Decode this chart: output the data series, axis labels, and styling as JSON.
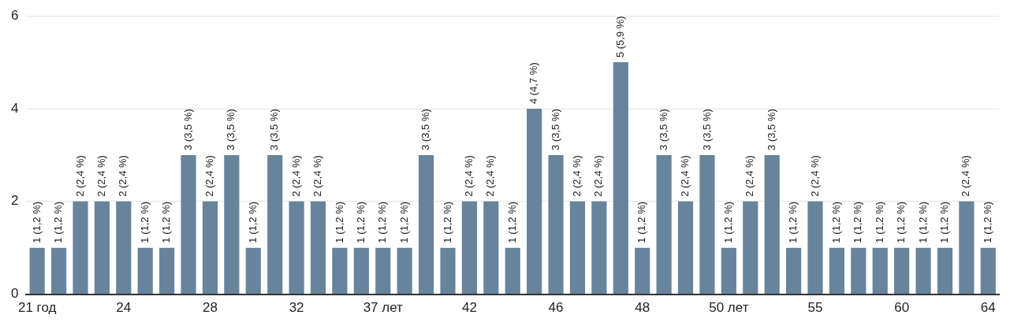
{
  "chart_data": {
    "type": "bar",
    "categories": [
      "21 год",
      null,
      null,
      null,
      "24",
      null,
      null,
      null,
      "28",
      null,
      null,
      null,
      "32",
      null,
      null,
      null,
      "37 лет",
      null,
      null,
      null,
      "42",
      null,
      null,
      null,
      "46",
      null,
      null,
      null,
      "48",
      null,
      null,
      null,
      "50 лет",
      null,
      null,
      null,
      "55",
      null,
      null,
      null,
      "60",
      null,
      null,
      null,
      "64"
    ],
    "values": [
      1,
      1,
      2,
      2,
      2,
      1,
      1,
      3,
      2,
      3,
      1,
      3,
      2,
      2,
      1,
      1,
      1,
      1,
      3,
      1,
      2,
      2,
      1,
      4,
      3,
      2,
      2,
      5,
      1,
      3,
      2,
      3,
      1,
      2,
      3,
      1,
      2,
      1,
      1,
      1,
      1,
      1,
      1,
      2,
      1
    ],
    "value_labels": [
      "1 (1,2 %)",
      "1 (1,2 %)",
      "2 (2,4 %)",
      "2 (2,4 %)",
      "2 (2,4 %)",
      "1 (1,2 %)",
      "1 (1,2 %)",
      "3 (3,5 %)",
      "2 (2,4 %)",
      "3 (3,5 %)",
      "1 (1,2 %)",
      "3 (3,5 %)",
      "2 (2,4 %)",
      "2 (2,4 %)",
      "1 (1,2 %)",
      "1 (1,2 %)",
      "1 (1,2 %)",
      "1 (1,2 %)",
      "3 (3,5 %)",
      "1 (1,2 %)",
      "2 (2,4 %)",
      "2 (2,4 %)",
      "1 (1,2 %)",
      "4 (4,7 %)",
      "3 (3,5 %)",
      "2 (2,4 %)",
      "2 (2,4 %)",
      "5 (5,9 %)",
      "1 (1,2 %)",
      "3 (3,5 %)",
      "2 (2,4 %)",
      "3 (3,5 %)",
      "1 (1,2 %)",
      "2 (2,4 %)",
      "3 (3,5 %)",
      "1 (1,2 %)",
      "2 (2,4 %)",
      "1 (1,2 %)",
      "1 (1,2 %)",
      "1 (1,2 %)",
      "1 (1,2 %)",
      "1 (1,2 %)",
      "1 (1,2 %)",
      "2 (2,4 %)",
      "1 (1,2 %)"
    ],
    "color": "#67849c",
    "ylim": [
      0,
      6
    ],
    "yticks": [
      0,
      2,
      4,
      6
    ],
    "grid": "y",
    "legend": false
  }
}
